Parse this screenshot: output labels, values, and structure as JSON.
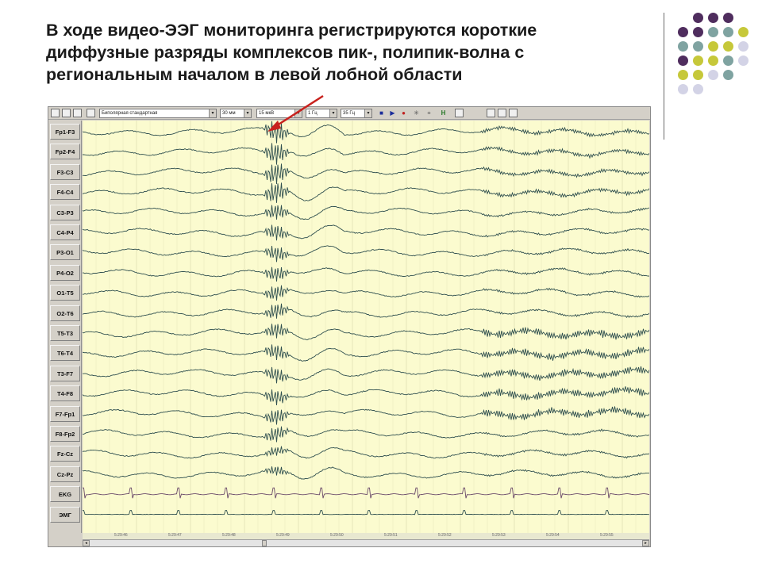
{
  "slide": {
    "title_lines": [
      "В ходе видео-ЭЭГ мониторинга регистрируются короткие",
      "диффузные разряды комплексов пик-, полипик-волна с",
      "региональным началом в левой лобной области"
    ]
  },
  "toolbar": {
    "montage": "Биполярная стандартная",
    "speed": "30 мм",
    "sensitivity": "15 мкВ",
    "low_filter": "1 Гц",
    "high_filter": "35 Гц"
  },
  "channels": [
    "Fp1-F3",
    "Fp2-F4",
    "F3-C3",
    "F4-C4",
    "C3-P3",
    "C4-P4",
    "P3-O1",
    "P4-O2",
    "O1-T5",
    "O2-T6",
    "T5-T3",
    "T6-T4",
    "T3-F7",
    "T4-F8",
    "F7-Fp1",
    "F8-Fp2",
    "Fz-Cz",
    "Cz-Pz",
    "EKG",
    "ЭМГ"
  ],
  "time_labels": [
    "5:29:46",
    "5:29:47",
    "5:29:48",
    "5:29:49",
    "5:29:50",
    "5:29:51",
    "5:29:52",
    "5:29:53",
    "5:29:54",
    "5:29:55"
  ],
  "colors": {
    "trace": "#2f4f4f",
    "background": "#fbfbcf",
    "arrow": "#c8221e",
    "dot_purple": "#4f2d5e",
    "dot_teal": "#7fa3a1",
    "dot_yellow": "#c6c83a",
    "dot_lavender": "#d3d3e6"
  }
}
